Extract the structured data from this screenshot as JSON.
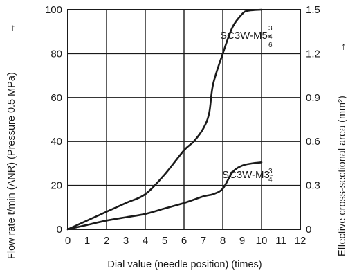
{
  "chart_data": {
    "type": "line",
    "xlabel": "Dial value (needle position) (times)",
    "ylabel_left": "Flow rate ℓ/min (ANR) (Pressure 0.5 MPa)",
    "ylabel_right": "Effective cross-sectional area (mm²)",
    "xlim": [
      0,
      12
    ],
    "ylim_left": [
      0,
      100
    ],
    "ylim_right": [
      0,
      1.5
    ],
    "x_ticks": [
      "0",
      "1",
      "2",
      "3",
      "4",
      "5",
      "6",
      "7",
      "8",
      "9",
      "10",
      "11",
      "12"
    ],
    "y_ticks_left": [
      "0",
      "20",
      "40",
      "60",
      "80",
      "100"
    ],
    "y_ticks_right": [
      "0",
      "0.3",
      "0.6",
      "0.9",
      "1.2",
      "1.5"
    ],
    "grid": true,
    "arrow_glyph": "→",
    "series": [
      {
        "name": "SC3W-M5-",
        "label_suffix": [
          "3",
          "4",
          "6"
        ],
        "x": [
          0,
          1,
          2,
          3,
          4,
          5,
          6,
          6.5,
          7,
          7.3,
          7.5,
          8,
          8.5,
          9,
          9.3,
          10
        ],
        "y": [
          0,
          4,
          8,
          12,
          16,
          25,
          36,
          40,
          46,
          53,
          66,
          80,
          92,
          98,
          99.5,
          100
        ]
      },
      {
        "name": "SC3W-M3-",
        "label_suffix": [
          "3",
          "4"
        ],
        "x": [
          0,
          1,
          2,
          3,
          4,
          5,
          6,
          7,
          7.5,
          8,
          8.5,
          9,
          9.5,
          10
        ],
        "y": [
          0,
          2,
          4,
          5.5,
          7,
          9.5,
          12,
          15,
          16,
          18.5,
          26,
          29,
          30,
          30.5
        ]
      }
    ]
  }
}
